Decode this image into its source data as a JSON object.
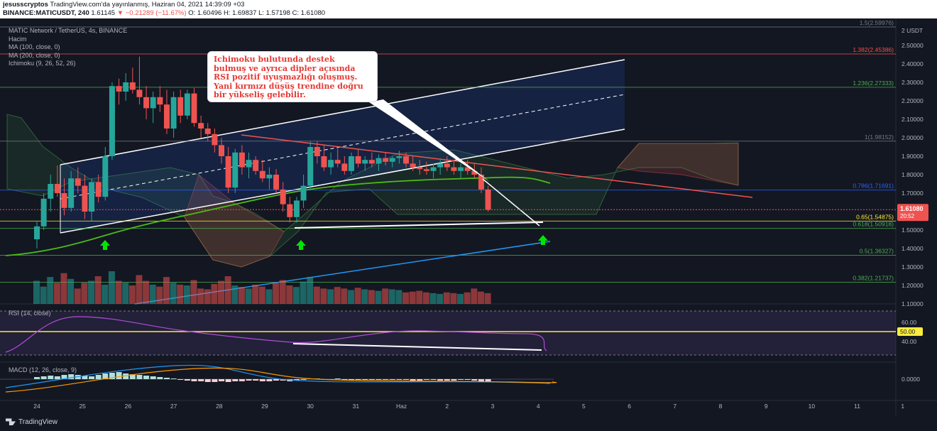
{
  "header": {
    "publisher": "jesusscryptos",
    "published_text": "TradingView.com'da yayınlanmış, Haziran 04, 2021 14:39:09 +03",
    "symbol": "BINANCE:MATICUSDT, 240",
    "price": "1.61145",
    "change": "▼ −0.21289 (−11.67%)",
    "ohlc": "O: 1.60496 H: 1.69837 L: 1.57198 C: 1.61080"
  },
  "legend": {
    "pair": "MATIC Network / TetherUS, 4s, BINANCE",
    "volume": "Hacim",
    "ma100": "MA (100, close, 0)",
    "ma200": "MA (200, close, 0)",
    "ichimoku": "Ichimoku (9, 26, 52, 26)"
  },
  "annotation": {
    "lines": [
      "Ichimoku bulutunda destek",
      "bulmuş ve ayrıca dipler açısında",
      "RSI pozitif uyuşmazlığı oluşmuş.",
      "Yani kırmızı düşüş trendine doğru",
      "bir yükseliş gelebilir."
    ]
  },
  "rsi_title": "RSI (14, close)",
  "macd_title": "MACD (12, 26, close, 9)",
  "footer": {
    "brand": "TradingView"
  },
  "colors": {
    "background": "#131722",
    "up": "#26a69a",
    "down": "#ef5350",
    "cloud_green": "#4caf50",
    "cloud_red": "#ef5350",
    "channel": "#ffffff",
    "ma100": "#4cbb17",
    "ma200": "#2196f3",
    "fib_line": "#787b86",
    "arrow": "#00e600"
  },
  "chart_data": {
    "type": "candlestick",
    "title": "MATIC Network / TetherUS, 4s, BINANCE",
    "currency": "USDT",
    "price_axis": {
      "min": 1.1,
      "max": 2.6,
      "ticks": [
        1.1,
        1.2,
        1.3,
        1.4,
        1.5,
        1.6,
        1.7,
        1.8,
        1.9,
        2.0,
        2.1,
        2.2,
        2.3,
        2.4,
        2.5
      ],
      "tick_labels": [
        "1.10000",
        "1.20000",
        "1.30000",
        "1.40000",
        "1.50000",
        "1.60000",
        "1.70000",
        "1.80000",
        "1.90000",
        "2.00000",
        "2.10000",
        "2.20000",
        "2.30000",
        "2.40000",
        "2.50000"
      ]
    },
    "x_axis": {
      "labels": [
        "24",
        "25",
        "26",
        "27",
        "28",
        "29",
        "30",
        "31",
        "Haz",
        "2",
        "3",
        "4",
        "5",
        "6",
        "7",
        "8",
        "9",
        "10",
        "11",
        "1"
      ],
      "positions": [
        0,
        1,
        2,
        3,
        4,
        5,
        6,
        7,
        8,
        9,
        10,
        11,
        12,
        13,
        14,
        15,
        16,
        17,
        18,
        19
      ]
    },
    "fib_levels": [
      {
        "label": "1.5(2.59976)",
        "value": 2.59976,
        "color": "#787b86"
      },
      {
        "label": "1.382(2.45386)",
        "value": 2.45386,
        "color": "#ef5350"
      },
      {
        "label": "1.236(2.27333)",
        "value": 2.27333,
        "color": "#4caf50"
      },
      {
        "label": "1(1.98152)",
        "value": 1.98152,
        "color": "#787b86"
      },
      {
        "label": "0.786(1.71691)",
        "value": 1.71691,
        "color": "#2962ff"
      },
      {
        "label": "0.65(1.54875)",
        "value": 1.54875,
        "color": "#ffeb3b"
      },
      {
        "label": "0.618(1.50918)",
        "value": 1.50918,
        "color": "#4caf50"
      },
      {
        "label": "0.5(1.36327)",
        "value": 1.36327,
        "color": "#4caf50"
      },
      {
        "label": "0.382(1.21737)",
        "value": 1.21737,
        "color": "#4caf50"
      }
    ],
    "current_price": {
      "value": 1.6108,
      "label": "1.61080",
      "countdown": "20:52"
    },
    "candles": [
      [
        0.0,
        1.45,
        1.55,
        1.4,
        1.52
      ],
      [
        0.15,
        1.52,
        1.7,
        1.5,
        1.67
      ],
      [
        0.3,
        1.67,
        1.8,
        1.6,
        1.75
      ],
      [
        0.45,
        1.75,
        1.85,
        1.68,
        1.7
      ],
      [
        0.6,
        1.7,
        1.78,
        1.58,
        1.62
      ],
      [
        0.75,
        1.62,
        1.82,
        1.6,
        1.78
      ],
      [
        0.9,
        1.78,
        1.84,
        1.7,
        1.74
      ],
      [
        1.05,
        1.74,
        1.8,
        1.56,
        1.6
      ],
      [
        1.2,
        1.6,
        1.78,
        1.55,
        1.76
      ],
      [
        1.35,
        1.76,
        1.8,
        1.65,
        1.68
      ],
      [
        1.5,
        1.68,
        1.95,
        1.66,
        1.9
      ],
      [
        1.65,
        1.9,
        2.3,
        1.88,
        2.28
      ],
      [
        1.8,
        2.28,
        2.32,
        2.18,
        2.25
      ],
      [
        1.95,
        2.25,
        2.35,
        2.2,
        2.3
      ],
      [
        2.1,
        2.3,
        2.38,
        2.24,
        2.26
      ],
      [
        2.25,
        2.26,
        2.44,
        2.18,
        2.22
      ],
      [
        2.4,
        2.22,
        2.28,
        2.1,
        2.16
      ],
      [
        2.55,
        2.16,
        2.25,
        2.08,
        2.22
      ],
      [
        2.7,
        2.22,
        2.28,
        2.14,
        2.18
      ],
      [
        2.85,
        2.18,
        2.26,
        2.02,
        2.05
      ],
      [
        3.0,
        2.05,
        2.25,
        2.0,
        2.22
      ],
      [
        3.15,
        2.22,
        2.26,
        2.08,
        2.12
      ],
      [
        3.3,
        2.12,
        2.26,
        2.1,
        2.24
      ],
      [
        3.45,
        2.24,
        2.27,
        2.06,
        2.08
      ],
      [
        3.6,
        2.08,
        2.12,
        2.0,
        2.05
      ],
      [
        3.75,
        2.05,
        2.08,
        1.98,
        2.02
      ],
      [
        3.9,
        2.02,
        2.05,
        1.92,
        1.96
      ],
      [
        4.05,
        1.96,
        2.0,
        1.86,
        1.9
      ],
      [
        4.2,
        1.9,
        1.95,
        1.7,
        1.73
      ],
      [
        4.35,
        1.73,
        1.94,
        1.7,
        1.92
      ],
      [
        4.5,
        1.92,
        1.96,
        1.8,
        1.84
      ],
      [
        4.65,
        1.84,
        1.92,
        1.78,
        1.88
      ],
      [
        4.8,
        1.88,
        1.9,
        1.8,
        1.82
      ],
      [
        4.95,
        1.82,
        1.88,
        1.76,
        1.78
      ],
      [
        5.1,
        1.78,
        1.84,
        1.72,
        1.8
      ],
      [
        5.25,
        1.8,
        1.83,
        1.7,
        1.72
      ],
      [
        5.4,
        1.72,
        1.76,
        1.6,
        1.64
      ],
      [
        5.55,
        1.64,
        1.68,
        1.54,
        1.57
      ],
      [
        5.7,
        1.57,
        1.68,
        1.54,
        1.66
      ],
      [
        5.85,
        1.66,
        1.8,
        1.62,
        1.74
      ],
      [
        6.0,
        1.74,
        1.98,
        1.72,
        1.95
      ],
      [
        6.15,
        1.95,
        1.98,
        1.86,
        1.9
      ],
      [
        6.3,
        1.9,
        1.96,
        1.82,
        1.84
      ],
      [
        6.45,
        1.84,
        1.92,
        1.8,
        1.88
      ],
      [
        6.6,
        1.88,
        1.94,
        1.84,
        1.86
      ],
      [
        6.75,
        1.86,
        1.9,
        1.8,
        1.82
      ],
      [
        6.9,
        1.82,
        1.92,
        1.8,
        1.9
      ],
      [
        7.05,
        1.9,
        1.94,
        1.84,
        1.86
      ],
      [
        7.2,
        1.86,
        1.9,
        1.82,
        1.88
      ],
      [
        7.35,
        1.88,
        1.92,
        1.84,
        1.86
      ],
      [
        7.5,
        1.86,
        1.91,
        1.82,
        1.89
      ],
      [
        7.65,
        1.89,
        1.92,
        1.85,
        1.87
      ],
      [
        7.8,
        1.87,
        1.9,
        1.84,
        1.89
      ],
      [
        7.95,
        1.89,
        1.93,
        1.86,
        1.9
      ],
      [
        8.1,
        1.9,
        1.92,
        1.84,
        1.86
      ],
      [
        8.25,
        1.86,
        1.9,
        1.82,
        1.84
      ],
      [
        8.4,
        1.84,
        1.88,
        1.8,
        1.83
      ],
      [
        8.55,
        1.83,
        1.87,
        1.8,
        1.82
      ],
      [
        8.7,
        1.82,
        1.86,
        1.78,
        1.84
      ],
      [
        8.85,
        1.84,
        1.88,
        1.8,
        1.86
      ],
      [
        9.0,
        1.86,
        1.9,
        1.82,
        1.84
      ],
      [
        9.15,
        1.84,
        1.88,
        1.8,
        1.82
      ],
      [
        9.3,
        1.82,
        1.86,
        1.78,
        1.84
      ],
      [
        9.45,
        1.84,
        1.88,
        1.8,
        1.82
      ],
      [
        9.6,
        1.82,
        1.86,
        1.78,
        1.8
      ],
      [
        9.75,
        1.8,
        1.84,
        1.7,
        1.72
      ],
      [
        9.9,
        1.72,
        1.74,
        1.6,
        1.61
      ]
    ],
    "volume": [
      60,
      45,
      70,
      55,
      80,
      65,
      40,
      55,
      60,
      72,
      50,
      85,
      60,
      55,
      48,
      75,
      60,
      50,
      45,
      70,
      55,
      50,
      48,
      62,
      40,
      38,
      52,
      60,
      72,
      48,
      44,
      40,
      50,
      45,
      38,
      55,
      62,
      48,
      44,
      58,
      70,
      45,
      40,
      38,
      44,
      40,
      36,
      42,
      38,
      36,
      34,
      40,
      38,
      36,
      30,
      32,
      34,
      30,
      28,
      26,
      30,
      28,
      26,
      30,
      40,
      32,
      28
    ],
    "rsi": {
      "range": [
        0,
        100
      ],
      "levels": [
        30,
        50,
        70
      ],
      "tick_labels": [
        "40.00",
        "50.00",
        "60.00"
      ],
      "current_label": "50.00"
    },
    "macd": {
      "tick_label": "0.0000"
    }
  }
}
